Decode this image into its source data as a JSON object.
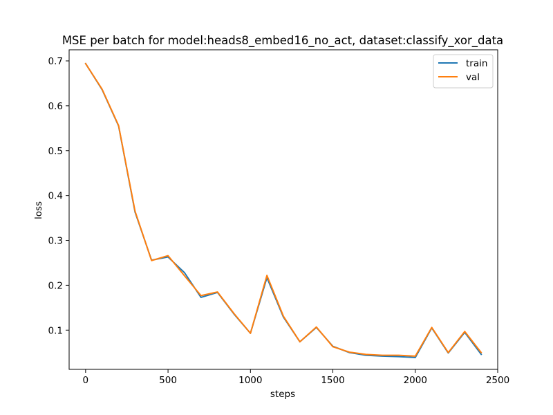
{
  "chart_data": {
    "type": "line",
    "title": "MSE per batch for model:heads8_embed16_no_act, dataset:classify_xor_data",
    "xlabel": "steps",
    "ylabel": "loss",
    "xlim": [
      -100,
      2500
    ],
    "ylim": [
      0.0126,
      0.7247
    ],
    "xticks": [
      0,
      500,
      1000,
      1500,
      2000,
      2500
    ],
    "yticks": [
      0.1,
      0.2,
      0.3,
      0.4,
      0.5,
      0.6,
      0.7
    ],
    "xtick_labels": [
      "0",
      "500",
      "1000",
      "1500",
      "2000",
      "2500"
    ],
    "ytick_labels": [
      "0.1",
      "0.2",
      "0.3",
      "0.4",
      "0.5",
      "0.6",
      "0.7"
    ],
    "grid": false,
    "legend_position": "top-right",
    "x": [
      0,
      100,
      200,
      300,
      400,
      500,
      600,
      700,
      800,
      900,
      1000,
      1100,
      1200,
      1300,
      1400,
      1500,
      1600,
      1700,
      1800,
      1900,
      2000,
      2100,
      2200,
      2300,
      2400
    ],
    "series": [
      {
        "name": "train",
        "color": "#1f77b4",
        "values": [
          0.694,
          0.636,
          0.555,
          0.363,
          0.256,
          0.263,
          0.228,
          0.173,
          0.184,
          0.136,
          0.093,
          0.217,
          0.129,
          0.074,
          0.106,
          0.064,
          0.05,
          0.044,
          0.042,
          0.041,
          0.039,
          0.105,
          0.049,
          0.095,
          0.046
        ]
      },
      {
        "name": "val",
        "color": "#ff7f0e",
        "values": [
          0.694,
          0.637,
          0.556,
          0.365,
          0.255,
          0.266,
          0.221,
          0.177,
          0.185,
          0.137,
          0.093,
          0.222,
          0.131,
          0.074,
          0.107,
          0.063,
          0.051,
          0.046,
          0.044,
          0.044,
          0.042,
          0.106,
          0.05,
          0.097,
          0.05
        ]
      }
    ]
  }
}
